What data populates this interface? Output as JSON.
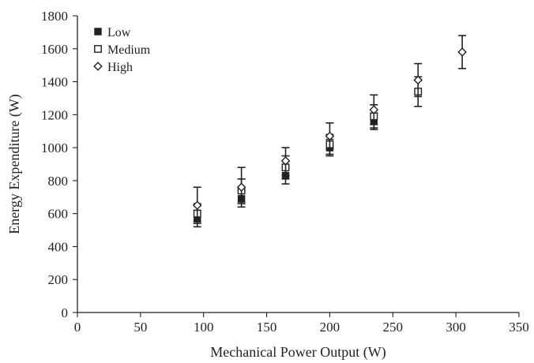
{
  "chart_data": {
    "type": "scatter",
    "title": "",
    "xlabel": "Mechanical Power Output (W)",
    "ylabel": "Energy Expenditure (W)",
    "xlim": [
      0,
      350
    ],
    "ylim": [
      0,
      1800
    ],
    "xticks": [
      0,
      50,
      100,
      150,
      200,
      250,
      300,
      350
    ],
    "yticks": [
      0,
      200,
      400,
      600,
      800,
      1000,
      1200,
      1400,
      1600,
      1800
    ],
    "grid": false,
    "legend_position": "top-left",
    "error_bars": true,
    "series": [
      {
        "name": "Low",
        "marker": "filled-square",
        "points": [
          {
            "x": 95,
            "y": 570,
            "lo": 520,
            "hi": 620
          },
          {
            "x": 130,
            "y": 690,
            "lo": 640,
            "hi": 740
          },
          {
            "x": 165,
            "y": 830,
            "lo": 780,
            "hi": 880
          },
          {
            "x": 200,
            "y": 1000,
            "lo": 950,
            "hi": 1050
          },
          {
            "x": 235,
            "y": 1160,
            "lo": 1110,
            "hi": 1210
          }
        ]
      },
      {
        "name": "Medium",
        "marker": "open-square",
        "points": [
          {
            "x": 95,
            "y": 600,
            "lo": 540,
            "hi": 660
          },
          {
            "x": 130,
            "y": 740,
            "lo": 670,
            "hi": 810
          },
          {
            "x": 165,
            "y": 880,
            "lo": 810,
            "hi": 950
          },
          {
            "x": 200,
            "y": 1020,
            "lo": 960,
            "hi": 1080
          },
          {
            "x": 235,
            "y": 1190,
            "lo": 1120,
            "hi": 1260
          },
          {
            "x": 270,
            "y": 1340,
            "lo": 1250,
            "hi": 1430
          }
        ]
      },
      {
        "name": "High",
        "marker": "open-diamond",
        "points": [
          {
            "x": 95,
            "y": 650,
            "lo": 550,
            "hi": 760
          },
          {
            "x": 130,
            "y": 760,
            "lo": 660,
            "hi": 880
          },
          {
            "x": 165,
            "y": 920,
            "lo": 830,
            "hi": 1000
          },
          {
            "x": 200,
            "y": 1070,
            "lo": 990,
            "hi": 1150
          },
          {
            "x": 235,
            "y": 1230,
            "lo": 1140,
            "hi": 1320
          },
          {
            "x": 270,
            "y": 1410,
            "lo": 1310,
            "hi": 1510
          },
          {
            "x": 305,
            "y": 1580,
            "lo": 1480,
            "hi": 1680
          }
        ]
      }
    ]
  }
}
